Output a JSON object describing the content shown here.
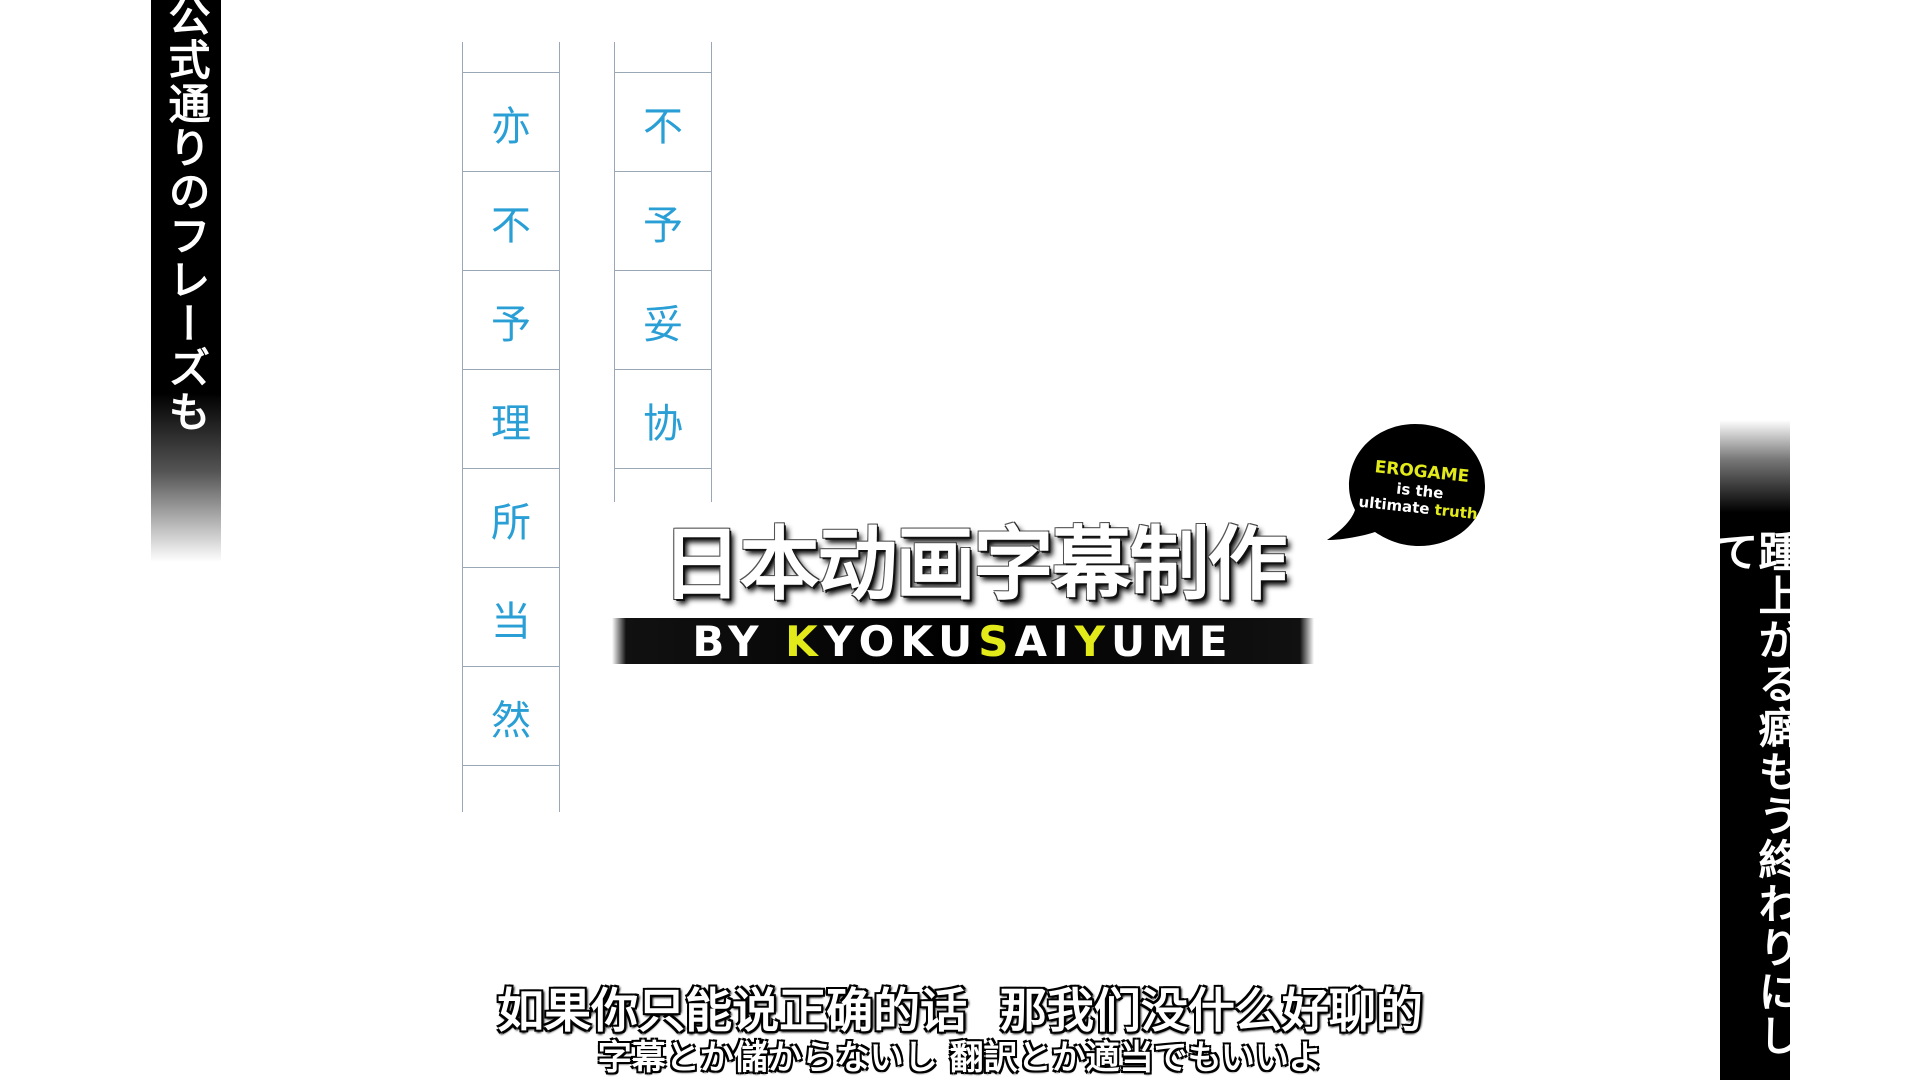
{
  "side_text": {
    "left": "公式通りのフレーズも",
    "right": "踵上がる癖もう終わりにして"
  },
  "columns": {
    "a": [
      "亦",
      "不",
      "予",
      "理",
      "所",
      "当",
      "然"
    ],
    "b": [
      "不",
      "予",
      "妥",
      "协"
    ]
  },
  "logo": {
    "title": "日本动画字幕制作",
    "by": "BY",
    "sub_parts": [
      "K",
      "YOKU",
      "S",
      "AI",
      "Y",
      "UME"
    ]
  },
  "bubble": {
    "line1": "EROGAME",
    "line2": "is the",
    "line3_a": "ultimate",
    "line3_b": "truth"
  },
  "subtitles": {
    "chinese": "如果你只能说正确的话  那我们没什么好聊的",
    "japanese": "字幕とか儲からないし 翻訳とか適当でもいいよ"
  },
  "colors": {
    "accent_yellow": "#e3ea1a",
    "column_text": "#2a9fd6",
    "column_lines": "#9aa7b4"
  }
}
